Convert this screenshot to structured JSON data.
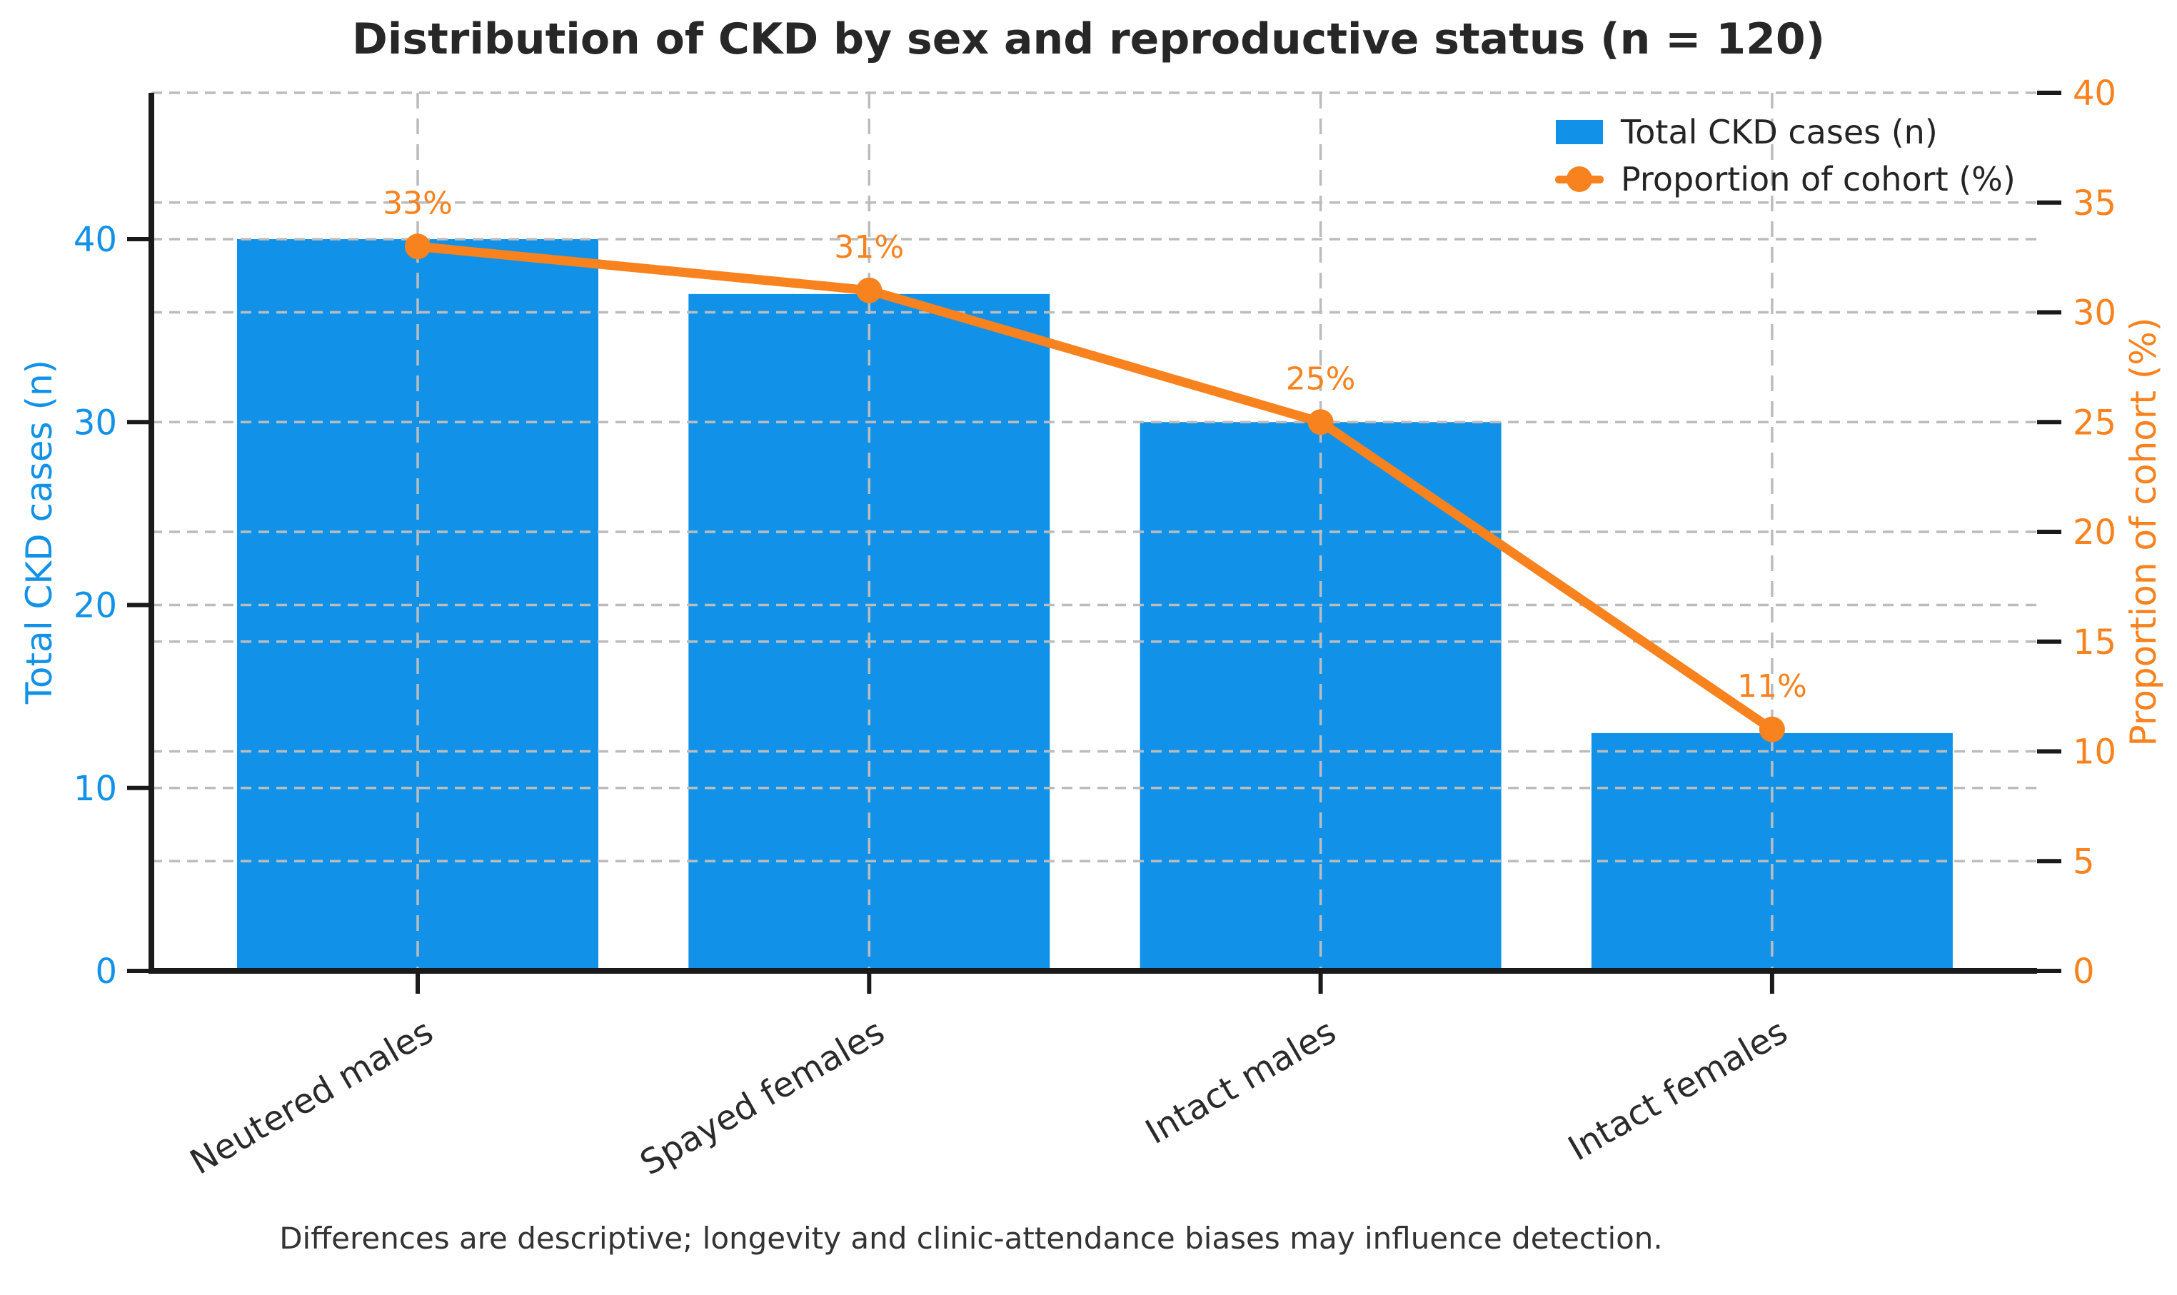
{
  "title": "Distribution of CKD by sex and reproductive status (n = 120)",
  "footnote": "Differences are descriptive; longevity and clinic-attendance biases may influence detection.",
  "colors": {
    "bar": "#1192e8",
    "line": "#f8821e",
    "grid": "#bcbcbc",
    "spine": "#1a1a1a",
    "title_text": "#272727",
    "x_tick_text": "#2a2a2a",
    "footnote_text": "#333333"
  },
  "left_axis": {
    "label": "Total CKD cases (n)",
    "ticks": [
      0,
      10,
      20,
      30,
      40
    ],
    "range": [
      0,
      48
    ],
    "color": "#1192e8"
  },
  "right_axis": {
    "label": "Proportion of cohort (%)",
    "ticks": [
      0,
      5,
      10,
      15,
      20,
      25,
      30,
      35,
      40
    ],
    "range": [
      0,
      40
    ],
    "color": "#f8821e"
  },
  "legend": {
    "position": "upper right"
  },
  "chart_data": {
    "type": "bar+line",
    "title": "Distribution of CKD by sex and reproductive status (n = 120)",
    "categories": [
      "Neutered males",
      "Spayed females",
      "Intact males",
      "Intact females"
    ],
    "series": [
      {
        "name": "Total CKD cases (n)",
        "type": "bar",
        "axis": "left",
        "values": [
          40,
          37,
          30,
          13
        ]
      },
      {
        "name": "Proportion of cohort (%)",
        "type": "line",
        "axis": "right",
        "values": [
          33,
          31,
          25,
          11
        ],
        "point_labels": [
          "33%",
          "31%",
          "25%",
          "11%"
        ]
      }
    ],
    "left_ylim": [
      0,
      48
    ],
    "right_ylim": [
      0,
      40
    ],
    "grid": true,
    "legend_position": "upper right"
  }
}
